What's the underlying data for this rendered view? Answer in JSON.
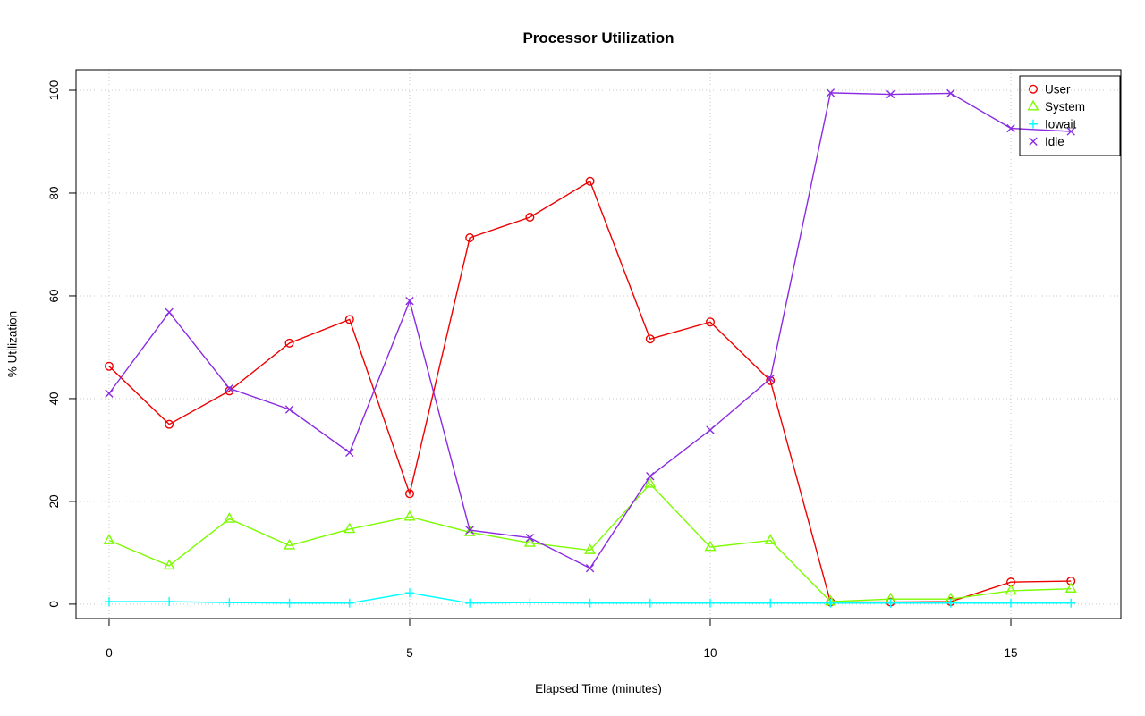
{
  "chart_data": {
    "type": "line",
    "title": "Processor Utilization",
    "xlabel": "Elapsed Time (minutes)",
    "ylabel": "% Utilization",
    "x": [
      0,
      1,
      2,
      3,
      4,
      5,
      6,
      7,
      8,
      9,
      10,
      11,
      12,
      13,
      14,
      15,
      16
    ],
    "xticks": [
      0,
      5,
      10,
      15
    ],
    "yticks": [
      0,
      20,
      40,
      60,
      80,
      100
    ],
    "xlim": [
      -0.55,
      16.83
    ],
    "ylim": [
      -2.8,
      104
    ],
    "grid": true,
    "grid_color": "#c8c8c8",
    "box_color": "#000000",
    "legend_position": "top-right",
    "series": [
      {
        "name": "User",
        "marker": "circle",
        "color": "#ee0000",
        "values": [
          46.3,
          35.0,
          41.5,
          50.8,
          55.4,
          21.5,
          71.3,
          75.3,
          82.3,
          51.6,
          54.9,
          43.5,
          0.4,
          0.4,
          0.5,
          4.3,
          4.5
        ]
      },
      {
        "name": "System",
        "marker": "triangle",
        "color": "#7cfc00",
        "values": [
          12.4,
          7.5,
          16.6,
          11.4,
          14.6,
          17.0,
          14.0,
          11.9,
          10.5,
          23.4,
          11.1,
          12.4,
          0.5,
          1.0,
          1.0,
          2.6,
          3.0
        ]
      },
      {
        "name": "Iowait",
        "marker": "plus",
        "color": "#00ffff",
        "values": [
          0.5,
          0.5,
          0.3,
          0.2,
          0.2,
          2.2,
          0.2,
          0.3,
          0.2,
          0.2,
          0.2,
          0.2,
          0.2,
          0.2,
          0.2,
          0.2,
          0.2
        ]
      },
      {
        "name": "Idle",
        "marker": "x",
        "color": "#8a2be2",
        "values": [
          41.0,
          56.8,
          42.0,
          37.9,
          29.5,
          59.0,
          14.4,
          12.9,
          7.0,
          24.9,
          33.9,
          43.9,
          99.5,
          99.2,
          99.4,
          92.6,
          92.0
        ]
      }
    ]
  }
}
